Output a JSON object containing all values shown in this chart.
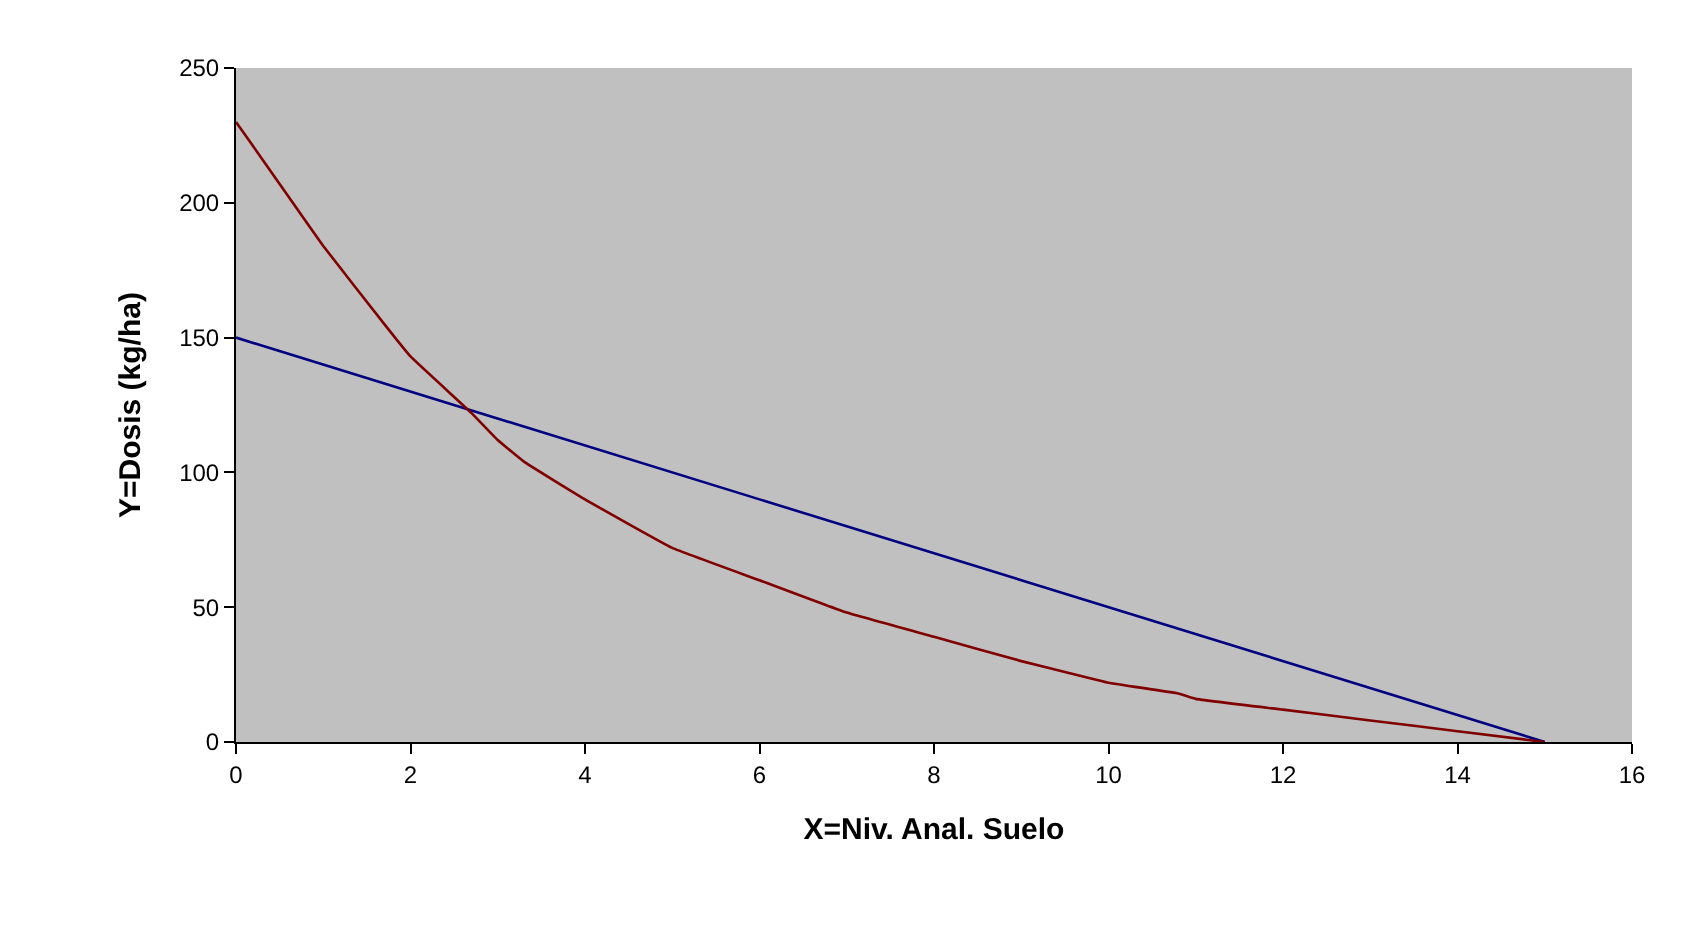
{
  "chart_data": {
    "type": "line",
    "xlabel": "X=Niv. Anal. Suelo",
    "ylabel": "Y=Dosis (kg/ha)",
    "xlim": [
      0,
      16
    ],
    "xticks": [
      0,
      2,
      4,
      6,
      8,
      10,
      12,
      14,
      16
    ],
    "ylim": [
      0,
      250
    ],
    "yticks": [
      0,
      50,
      100,
      150,
      200,
      250
    ],
    "grid": false,
    "marker": "none",
    "line_style": "solid",
    "series": [
      {
        "color": "#000080",
        "x": [
          0,
          15
        ],
        "values": [
          150,
          0
        ]
      },
      {
        "color": "#800000",
        "x": [
          0,
          0.5,
          1,
          1.7,
          2,
          2.7,
          3,
          3.3,
          4,
          5,
          6,
          7,
          8,
          9,
          9.5,
          10,
          10.8,
          11,
          12,
          13,
          14,
          15
        ],
        "values": [
          230,
          207,
          184,
          155,
          143,
          122,
          112,
          104,
          90,
          72,
          60,
          48,
          39,
          30,
          26,
          22,
          18,
          16,
          12,
          8,
          4,
          0
        ]
      }
    ]
  }
}
